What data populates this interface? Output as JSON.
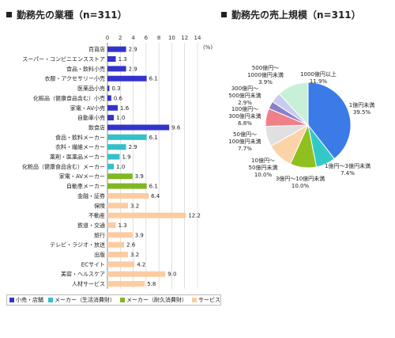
{
  "titles": {
    "industry": "勤務先の業種（n=311）",
    "sales": "勤務先の売上規模（n=311）"
  },
  "colors": {
    "retail": "#3333cc",
    "consumer_maker": "#33c0c8",
    "durable_maker": "#80b820",
    "service": "#fccca0",
    "axis": "#888888",
    "grid": "#cccccc"
  },
  "legend": [
    {
      "label": "小売・店舗",
      "color": "#3333cc"
    },
    {
      "label": "メーカー（生活消費財）",
      "color": "#33c0c8"
    },
    {
      "label": "メーカー（耐久消費財）",
      "color": "#80b820"
    },
    {
      "label": "サービス",
      "color": "#fccca0"
    }
  ],
  "chart_data": [
    {
      "type": "bar",
      "orientation": "horizontal",
      "title": "勤務先の業種（n=311）",
      "unit": "(%)",
      "xlim": [
        0,
        14
      ],
      "xticks": [
        "0",
        "2",
        "4",
        "6",
        "8",
        "10",
        "12",
        "14"
      ],
      "grid": true,
      "categories": [
        "百貨店",
        "スーパー・コンビニエンスストア",
        "食品・飲料小売",
        "衣服・アクセサリー小売",
        "医薬品小売",
        "化粧品（健康食品含む）小売",
        "家電・AV小売",
        "自動車小売",
        "飲食店",
        "食品・飲料メーカー",
        "衣料・繊維メーカー",
        "薬剤・医薬品メーカー",
        "化粧品（健康食品含む）メーカー",
        "家電・AVメーカー",
        "自動車メーカー",
        "金融・証券",
        "保険",
        "不動産",
        "鉄道・交通",
        "旅行",
        "テレビ・ラジオ・放送",
        "出版",
        "ECサイト",
        "美容・ヘルスケア",
        "人材サービス"
      ],
      "values": [
        2.9,
        1.3,
        2.9,
        6.1,
        0.3,
        0.6,
        1.6,
        1.0,
        9.6,
        6.1,
        2.9,
        1.9,
        1.0,
        3.9,
        6.1,
        6.4,
        3.2,
        12.2,
        1.3,
        3.9,
        2.6,
        3.2,
        4.2,
        9.0,
        5.8
      ],
      "value_labels": [
        "2.9",
        "1.3",
        "2.9",
        "6.1",
        "0.3",
        "0.6",
        "1.6",
        "1.0",
        "9.6",
        "6.1",
        "2.9",
        "1.9",
        "1.0",
        "3.9",
        "6.1",
        "6.4",
        "3.2",
        "12.2",
        "1.3",
        "3.9",
        "2.6",
        "3.2",
        "4.2",
        "9.0",
        "5.8"
      ],
      "groups": [
        "retail",
        "retail",
        "retail",
        "retail",
        "retail",
        "retail",
        "retail",
        "retail",
        "retail",
        "consumer_maker",
        "consumer_maker",
        "consumer_maker",
        "consumer_maker",
        "durable_maker",
        "durable_maker",
        "service",
        "service",
        "service",
        "service",
        "service",
        "service",
        "service",
        "service",
        "service",
        "service"
      ]
    },
    {
      "type": "pie",
      "title": "勤務先の売上規模（n=311）",
      "slices": [
        {
          "label_lines": [
            "1億円未満",
            "39.5%"
          ],
          "value": 39.5,
          "color": "#3a7be8"
        },
        {
          "label_lines": [
            "1億円～3億円未満",
            "7.4%"
          ],
          "value": 7.4,
          "color": "#33c8c8"
        },
        {
          "label_lines": [
            "3億円～10億円未満",
            "10.0%"
          ],
          "value": 10.0,
          "color": "#90c020"
        },
        {
          "label_lines": [
            "10億円～",
            "50億円未満",
            "10.0%"
          ],
          "value": 10.0,
          "color": "#fbd3a8"
        },
        {
          "label_lines": [
            "50億円～",
            "100億円未満",
            "7.7%"
          ],
          "value": 7.7,
          "color": "#e0e0e0"
        },
        {
          "label_lines": [
            "100億円～",
            "300億円未満",
            "6.8%"
          ],
          "value": 6.8,
          "color": "#f08088"
        },
        {
          "label_lines": [
            "300億円～",
            "500億円未満",
            "2.9%"
          ],
          "value": 2.9,
          "color": "#8b80c8"
        },
        {
          "label_lines": [
            "500億円～",
            "1000億円未満",
            "3.9%"
          ],
          "value": 3.9,
          "color": "#c8ccf0"
        },
        {
          "label_lines": [
            "1000億円以上",
            "11.9%"
          ],
          "value": 11.9,
          "color": "#c8f0d8"
        }
      ]
    }
  ]
}
